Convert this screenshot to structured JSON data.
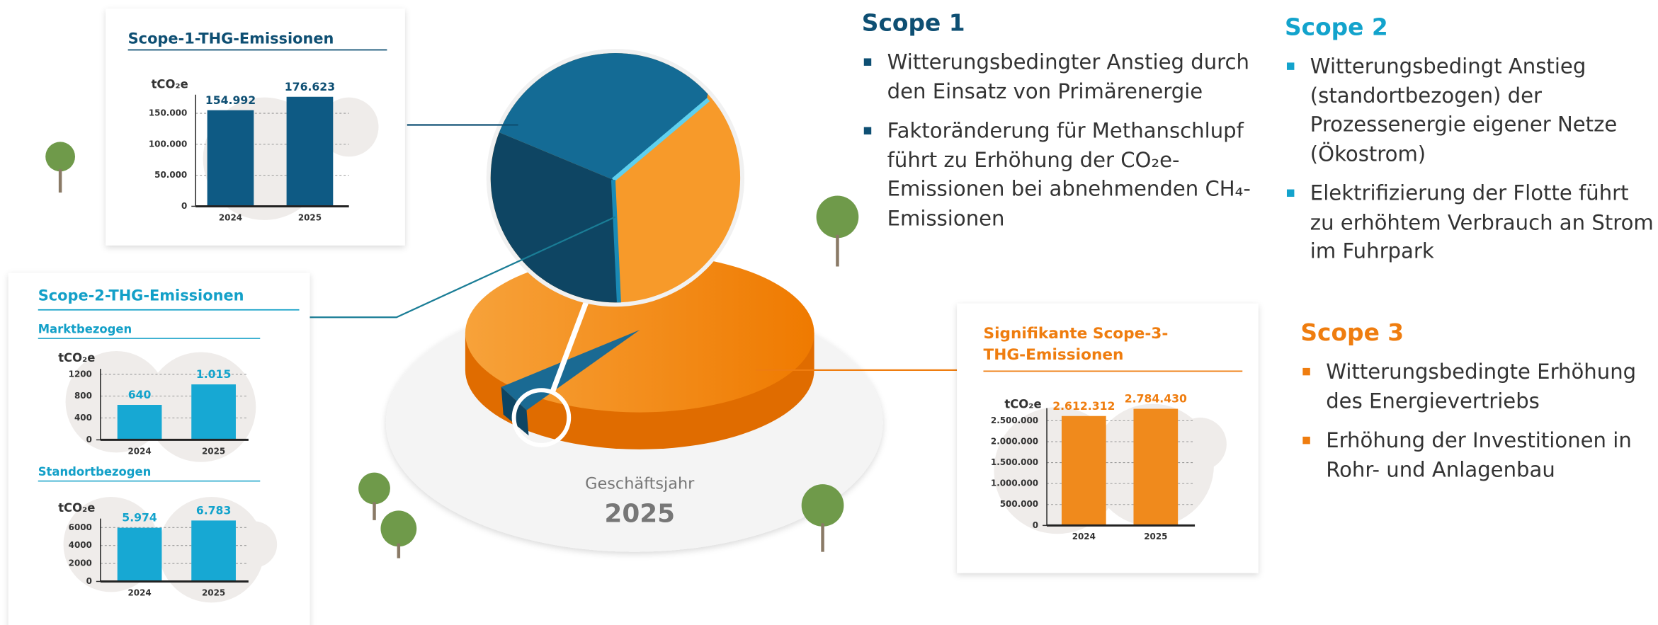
{
  "chart_data": [
    {
      "type": "bar",
      "title": "Scope-1-THG-Emissionen",
      "y_label": "tCO₂e",
      "categories": [
        "2024",
        "2025"
      ],
      "values": [
        154992,
        176623
      ],
      "value_labels": [
        "154.992",
        "176.623"
      ],
      "color": "#0e5a84",
      "ylim": [
        0,
        180000
      ],
      "yticks": [
        0,
        {
          "value": 50000,
          "label": "50.000"
        },
        {
          "value": 100000,
          "label": "100.000"
        },
        {
          "value": 150000,
          "label": "150.000"
        }
      ],
      "grid": true
    },
    {
      "type": "bar",
      "title": "Scope-2-THG-Emissionen",
      "subtitle": "Marktbezogen",
      "y_label": "tCO₂e",
      "categories": [
        "2024",
        "2025"
      ],
      "values": [
        640,
        1015
      ],
      "value_labels": [
        "640",
        "1.015"
      ],
      "color": "#17a8d3",
      "ylim": [
        0,
        1300
      ],
      "yticks": [
        0,
        400,
        800,
        1200
      ],
      "grid": true
    },
    {
      "type": "bar",
      "subtitle": "Standortbezogen",
      "y_label": "tCO₂e",
      "categories": [
        "2024",
        "2025"
      ],
      "values": [
        5974,
        6783
      ],
      "value_labels": [
        "5.974",
        "6.783"
      ],
      "color": "#17a8d3",
      "ylim": [
        0,
        7000
      ],
      "yticks": [
        0,
        2000,
        4000,
        6000
      ],
      "grid": true
    },
    {
      "type": "bar",
      "title": "Signifikante Scope-3-THG-Emissionen",
      "y_label": "tCO₂e",
      "categories": [
        "2024",
        "2025"
      ],
      "values": [
        2612312,
        2784430
      ],
      "value_labels": [
        "2.612.312",
        "2.784.430"
      ],
      "color": "#f08a1c",
      "ylim": [
        0,
        2800000
      ],
      "yticks": [
        0,
        {
          "value": 500000,
          "label": "500.000"
        },
        {
          "value": 1000000,
          "label": "1.000.000"
        },
        {
          "value": 1500000,
          "label": "1.500.000"
        },
        {
          "value": 2000000,
          "label": "2.000.000"
        },
        {
          "value": 2500000,
          "label": "2.500.000"
        }
      ],
      "grid": true
    }
  ],
  "pie": {
    "label": "Geschäftsjahr",
    "year": "2025"
  },
  "scope1": {
    "heading": "Scope 1",
    "bullets": [
      "Witterungsbedingter Anstieg durch den Einsatz von Primärenergie",
      "Faktoränderung für Methan­schlupf führt zu Erhöhung der CO₂e-Emissionen bei abnehmenden CH₄-Emissionen"
    ]
  },
  "scope2": {
    "heading": "Scope 2",
    "bullets": [
      "Witterungsbedingt Anstieg (standortbezogen) der Prozessenergie eigener Netze (Ökostrom)",
      "Elektrifizierung der Flotte führt zu erhöhtem Verbrauch an Strom im Fuhrpark"
    ]
  },
  "scope3": {
    "heading": "Scope 3",
    "bullets": [
      "Witterungsbedingte Erhöhung des Energievertriebs",
      "Erhöhung der Investitionen in Rohr- und Anlagenbau"
    ]
  }
}
